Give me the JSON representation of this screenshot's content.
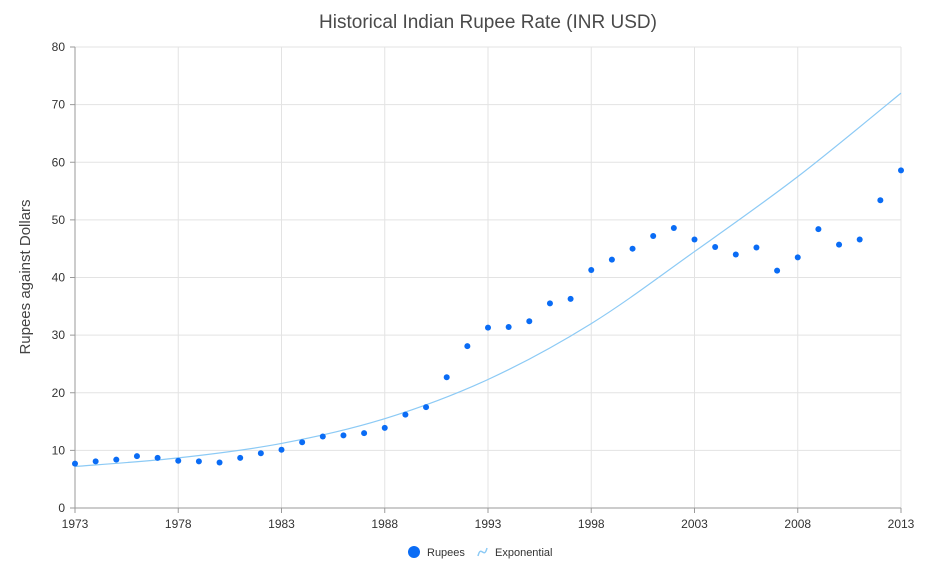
{
  "chart_data": {
    "type": "scatter",
    "title": "Historical Indian Rupee Rate (INR USD)",
    "xlabel": "",
    "ylabel": "Rupees against Dollars",
    "xlim": [
      1973,
      2013
    ],
    "ylim": [
      0,
      80
    ],
    "x_ticks": [
      1973,
      1978,
      1983,
      1988,
      1993,
      1998,
      2003,
      2008,
      2013
    ],
    "y_ticks": [
      0,
      10,
      20,
      30,
      40,
      50,
      60,
      70,
      80
    ],
    "grid": true,
    "legend_position": "bottom",
    "series": [
      {
        "name": "Rupees",
        "kind": "scatter",
        "color": "#0a6cf5",
        "points": [
          [
            1973,
            7.7
          ],
          [
            1974,
            8.1
          ],
          [
            1975,
            8.4
          ],
          [
            1976,
            9.0
          ],
          [
            1977,
            8.7
          ],
          [
            1978,
            8.2
          ],
          [
            1979,
            8.1
          ],
          [
            1980,
            7.9
          ],
          [
            1981,
            8.7
          ],
          [
            1982,
            9.5
          ],
          [
            1983,
            10.1
          ],
          [
            1984,
            11.4
          ],
          [
            1985,
            12.4
          ],
          [
            1986,
            12.6
          ],
          [
            1987,
            13.0
          ],
          [
            1988,
            13.9
          ],
          [
            1989,
            16.2
          ],
          [
            1990,
            17.5
          ],
          [
            1991,
            22.7
          ],
          [
            1992,
            28.1
          ],
          [
            1993,
            31.3
          ],
          [
            1994,
            31.4
          ],
          [
            1995,
            32.4
          ],
          [
            1996,
            35.5
          ],
          [
            1997,
            36.3
          ],
          [
            1998,
            41.3
          ],
          [
            1999,
            43.1
          ],
          [
            2000,
            45.0
          ],
          [
            2001,
            47.2
          ],
          [
            2002,
            48.6
          ],
          [
            2003,
            46.6
          ],
          [
            2004,
            45.3
          ],
          [
            2005,
            44.0
          ],
          [
            2006,
            45.2
          ],
          [
            2007,
            41.2
          ],
          [
            2008,
            43.5
          ],
          [
            2009,
            48.4
          ],
          [
            2010,
            45.7
          ],
          [
            2011,
            46.6
          ],
          [
            2012,
            53.4
          ],
          [
            2013,
            58.6
          ]
        ]
      },
      {
        "name": "Exponential",
        "kind": "trendline",
        "color": "#8ccaf5",
        "points": [
          [
            1973,
            7.2
          ],
          [
            1978,
            8.7
          ],
          [
            1983,
            11.2
          ],
          [
            1988,
            15.5
          ],
          [
            1993,
            22.3
          ],
          [
            1998,
            32.0
          ],
          [
            2003,
            44.5
          ],
          [
            2008,
            57.5
          ],
          [
            2013,
            72.0
          ]
        ]
      }
    ]
  }
}
